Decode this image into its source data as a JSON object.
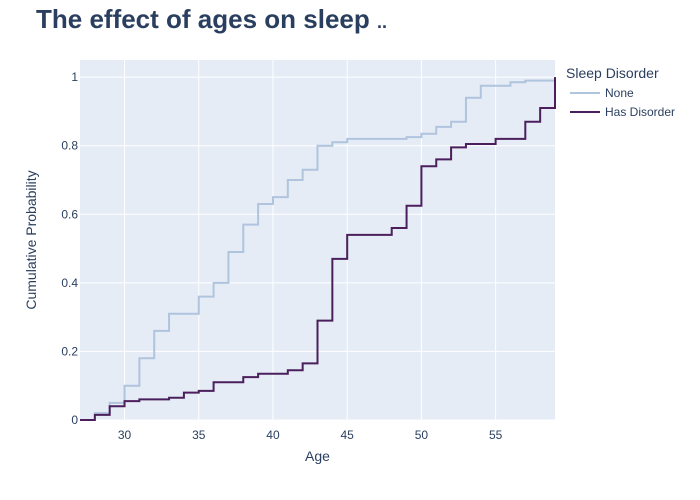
{
  "title": "The effect of ages on sleep",
  "title_ellipsis": "..",
  "chart_data": {
    "type": "line",
    "line_shape": "step",
    "xlabel": "Age",
    "ylabel": "Cumulative Probability",
    "xlim": [
      27,
      59
    ],
    "ylim": [
      0,
      1.05
    ],
    "x_ticks": [
      30,
      35,
      40,
      45,
      50,
      55
    ],
    "y_ticks": [
      0,
      0.2,
      0.4,
      0.6,
      0.8,
      1
    ],
    "y_tick_labels": [
      "0",
      "0.2",
      "0.4",
      "0.6",
      "0.8",
      "1"
    ],
    "legend": {
      "title": "Sleep Disorder",
      "position": "top-right"
    },
    "background": "#e5ecf6",
    "series": [
      {
        "name": "None",
        "color": "#b0c4de",
        "x": [
          27,
          28,
          29,
          30,
          31,
          32,
          33,
          35,
          36,
          37,
          38,
          39,
          40,
          41,
          42,
          43,
          44,
          45,
          49,
          50,
          51,
          52,
          53,
          54,
          56,
          57,
          59
        ],
        "y": [
          0.0,
          0.02,
          0.05,
          0.1,
          0.18,
          0.26,
          0.31,
          0.36,
          0.4,
          0.49,
          0.57,
          0.63,
          0.65,
          0.7,
          0.73,
          0.8,
          0.81,
          0.82,
          0.825,
          0.835,
          0.855,
          0.87,
          0.94,
          0.975,
          0.985,
          0.99,
          1.0
        ]
      },
      {
        "name": "Has Disorder",
        "color": "#4b1f5c",
        "x": [
          27,
          28,
          29,
          30,
          31,
          32,
          33,
          34,
          35,
          36,
          38,
          39,
          41,
          42,
          43,
          44,
          45,
          48,
          49,
          50,
          51,
          52,
          53,
          55,
          57,
          58,
          59
        ],
        "y": [
          0.0,
          0.015,
          0.04,
          0.055,
          0.06,
          0.06,
          0.065,
          0.08,
          0.085,
          0.11,
          0.125,
          0.135,
          0.145,
          0.165,
          0.29,
          0.47,
          0.54,
          0.56,
          0.625,
          0.74,
          0.76,
          0.795,
          0.805,
          0.82,
          0.87,
          0.91,
          1.0
        ]
      }
    ]
  }
}
